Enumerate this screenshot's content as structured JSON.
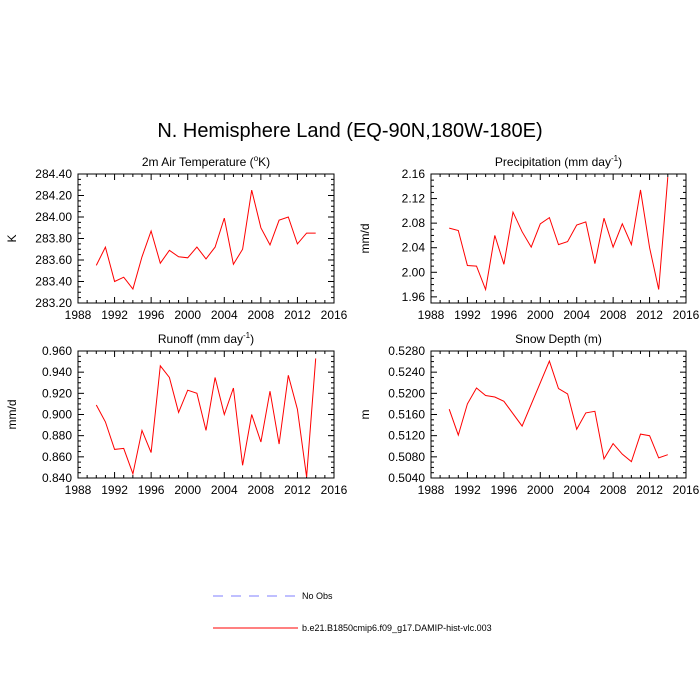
{
  "main_title": "N. Hemisphere Land (EQ-90N,180W-180E)",
  "legend": [
    {
      "label": "No Obs",
      "style": "dashed",
      "color": "#7f7fff"
    },
    {
      "label": "b.e21.B1850cmip6.f09_g17.DAMIP-hist-vlc.003",
      "style": "solid",
      "color": "#ff0000"
    }
  ],
  "chart_data": [
    {
      "type": "line",
      "title": "2m Air Temperature (",
      "title_sup": "o",
      "title_end": "K)",
      "ylabel": "K",
      "xlabel": "",
      "xlim": [
        1988,
        2016
      ],
      "ylim": [
        283.2,
        284.4
      ],
      "xticks": [
        1988,
        1992,
        1996,
        2000,
        2004,
        2008,
        2012,
        2016
      ],
      "xtick_labels": [
        "1988",
        "1992",
        "1996",
        "2000",
        "2004",
        "2008",
        "2012",
        "2016"
      ],
      "yticks": [
        283.2,
        283.4,
        283.6,
        283.8,
        284.0,
        284.2,
        284.4
      ],
      "ytick_labels": [
        "283.20",
        "283.40",
        "283.60",
        "283.80",
        "284.00",
        "284.20",
        "284.40"
      ],
      "series": [
        {
          "name": "b.e21.B1850cmip6.f09_g17.DAMIP-hist-vlc.003",
          "color": "#ff0000",
          "x": [
            1990,
            1991,
            1992,
            1993,
            1994,
            1995,
            1996,
            1997,
            1998,
            1999,
            2000,
            2001,
            2002,
            2003,
            2004,
            2005,
            2006,
            2007,
            2008,
            2009,
            2010,
            2011,
            2012,
            2013,
            2014
          ],
          "values": [
            283.55,
            283.72,
            283.4,
            283.44,
            283.33,
            283.63,
            283.87,
            283.57,
            283.69,
            283.63,
            283.62,
            283.72,
            283.61,
            283.72,
            283.99,
            283.56,
            283.7,
            284.25,
            283.9,
            283.74,
            283.97,
            284.0,
            283.75,
            283.85,
            283.85
          ]
        }
      ]
    },
    {
      "type": "line",
      "title": "Precipitation (mm day",
      "title_sup": "-1",
      "title_end": ")",
      "ylabel": "mm/d",
      "xlabel": "",
      "xlim": [
        1988,
        2016
      ],
      "ylim": [
        1.95,
        2.16
      ],
      "xticks": [
        1988,
        1992,
        1996,
        2000,
        2004,
        2008,
        2012,
        2016
      ],
      "xtick_labels": [
        "1988",
        "1992",
        "1996",
        "2000",
        "2004",
        "2008",
        "2012",
        "2016"
      ],
      "yticks": [
        1.96,
        2.0,
        2.04,
        2.08,
        2.12,
        2.16
      ],
      "ytick_labels": [
        "1.96",
        "2.00",
        "2.04",
        "2.08",
        "2.12",
        "2.16"
      ],
      "series": [
        {
          "name": "b.e21.B1850cmip6.f09_g17.DAMIP-hist-vlc.003",
          "color": "#ff0000",
          "x": [
            1990,
            1991,
            1992,
            1993,
            1994,
            1995,
            1996,
            1997,
            1998,
            1999,
            2000,
            2001,
            2002,
            2003,
            2004,
            2005,
            2006,
            2007,
            2008,
            2009,
            2010,
            2011,
            2012,
            2013,
            2014
          ],
          "values": [
            2.072,
            2.068,
            2.011,
            2.01,
            1.972,
            2.06,
            2.013,
            2.098,
            2.066,
            2.041,
            2.079,
            2.089,
            2.045,
            2.05,
            2.077,
            2.082,
            2.014,
            2.088,
            2.041,
            2.079,
            2.045,
            2.134,
            2.04,
            1.972,
            2.155
          ]
        }
      ]
    },
    {
      "type": "line",
      "title": "Runoff (mm day",
      "title_sup": "-1",
      "title_end": ")",
      "ylabel": "mm/d",
      "xlabel": "",
      "xlim": [
        1988,
        2016
      ],
      "ylim": [
        0.84,
        0.96
      ],
      "xticks": [
        1988,
        1992,
        1996,
        2000,
        2004,
        2008,
        2012,
        2016
      ],
      "xtick_labels": [
        "1988",
        "1992",
        "1996",
        "2000",
        "2004",
        "2008",
        "2012",
        "2016"
      ],
      "yticks": [
        0.84,
        0.86,
        0.88,
        0.9,
        0.92,
        0.94,
        0.96
      ],
      "ytick_labels": [
        "0.840",
        "0.860",
        "0.880",
        "0.900",
        "0.920",
        "0.940",
        "0.960"
      ],
      "series": [
        {
          "name": "b.e21.B1850cmip6.f09_g17.DAMIP-hist-vlc.003",
          "color": "#ff0000",
          "x": [
            1990,
            1991,
            1992,
            1993,
            1994,
            1995,
            1996,
            1997,
            1998,
            1999,
            2000,
            2001,
            2002,
            2003,
            2004,
            2005,
            2006,
            2007,
            2008,
            2009,
            2010,
            2011,
            2012,
            2013,
            2014
          ],
          "values": [
            0.909,
            0.893,
            0.867,
            0.868,
            0.844,
            0.885,
            0.864,
            0.946,
            0.935,
            0.902,
            0.923,
            0.92,
            0.885,
            0.935,
            0.9,
            0.925,
            0.852,
            0.9,
            0.874,
            0.922,
            0.872,
            0.937,
            0.905,
            0.841,
            0.953
          ]
        }
      ]
    },
    {
      "type": "line",
      "title": "Snow Depth (m)",
      "title_sup": "",
      "title_end": "",
      "ylabel": "m",
      "xlabel": "",
      "xlim": [
        1988,
        2016
      ],
      "ylim": [
        0.504,
        0.528
      ],
      "xticks": [
        1988,
        1992,
        1996,
        2000,
        2004,
        2008,
        2012,
        2016
      ],
      "xtick_labels": [
        "1988",
        "1992",
        "1996",
        "2000",
        "2004",
        "2008",
        "2012",
        "2016"
      ],
      "yticks": [
        0.504,
        0.508,
        0.512,
        0.516,
        0.52,
        0.524,
        0.528
      ],
      "ytick_labels": [
        "0.5040",
        "0.5080",
        "0.5120",
        "0.5160",
        "0.5200",
        "0.5240",
        "0.5280"
      ],
      "series": [
        {
          "name": "b.e21.B1850cmip6.f09_g17.DAMIP-hist-vlc.003",
          "color": "#ff0000",
          "x": [
            1990,
            1991,
            1992,
            1993,
            1994,
            1995,
            1996,
            1998,
            2001,
            2002,
            2003,
            2004,
            2005,
            2006,
            2007,
            2008,
            2009,
            2010,
            2011,
            2012,
            2013,
            2014
          ],
          "values": [
            0.517,
            0.5121,
            0.518,
            0.521,
            0.5196,
            0.5193,
            0.5185,
            0.5138,
            0.5261,
            0.5209,
            0.5199,
            0.5132,
            0.5163,
            0.5166,
            0.5076,
            0.5105,
            0.5085,
            0.5071,
            0.5123,
            0.512,
            0.5078,
            0.5084
          ]
        }
      ]
    }
  ]
}
